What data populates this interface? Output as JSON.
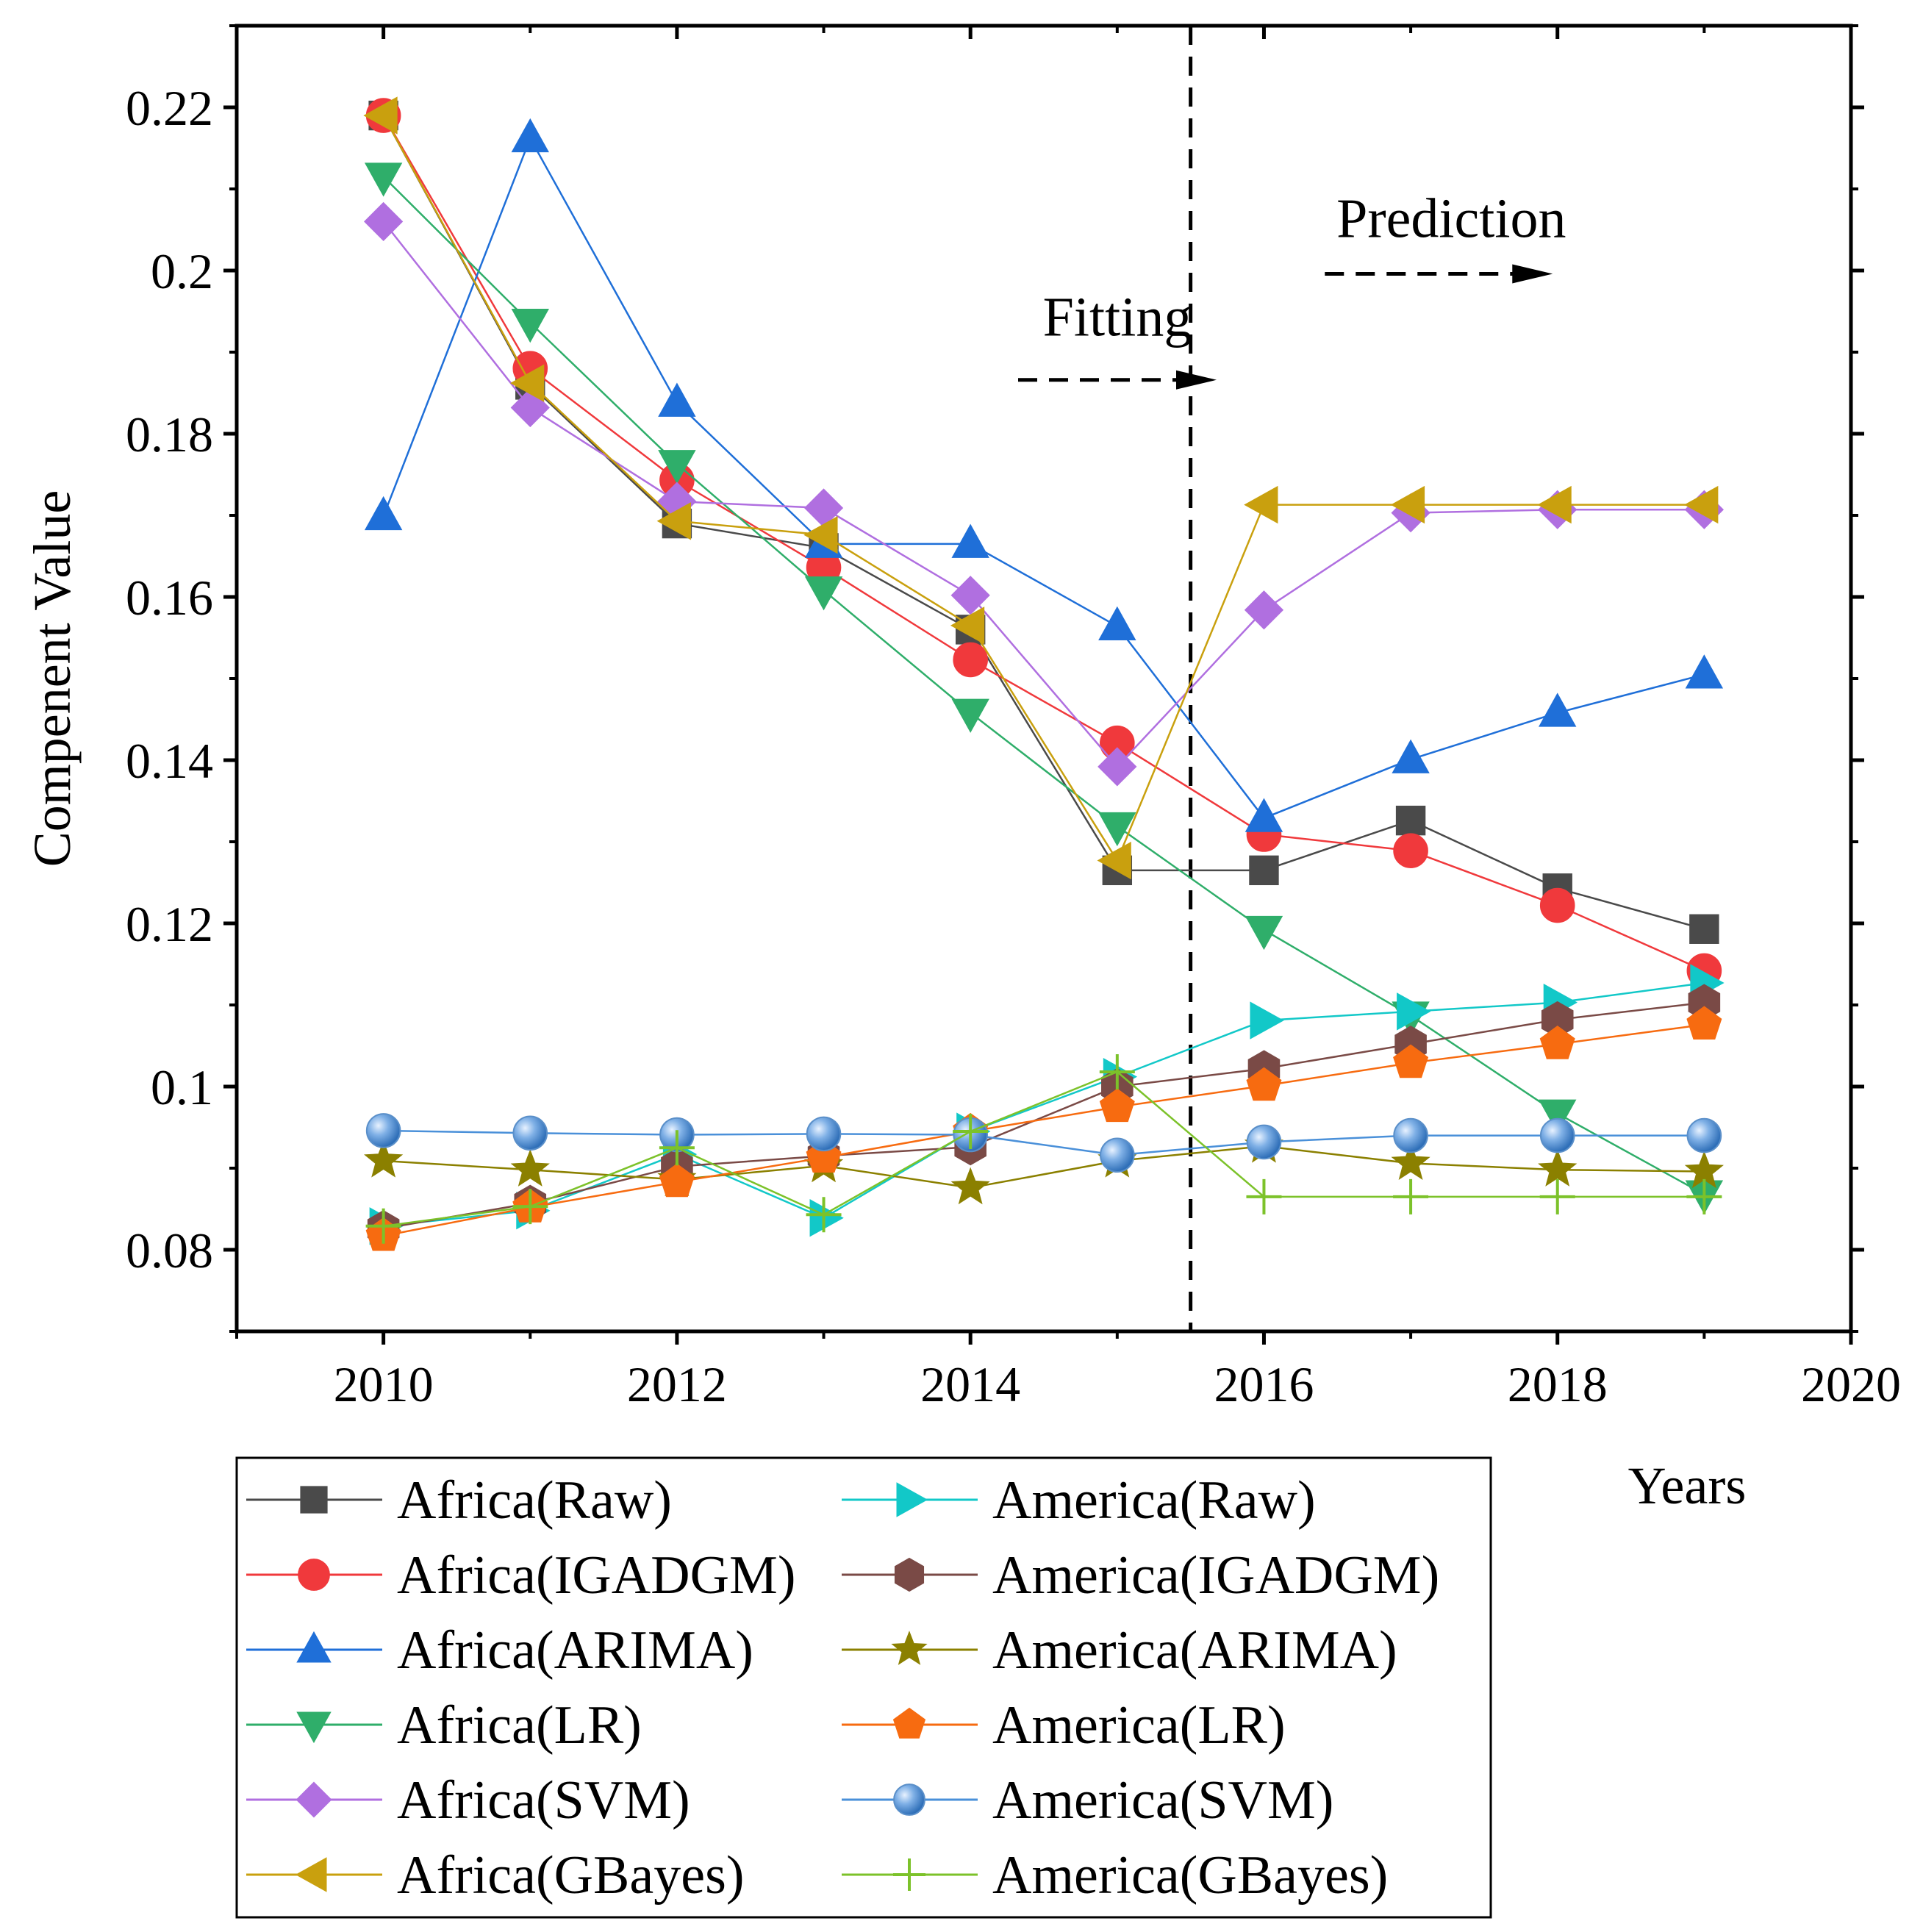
{
  "chart_data": {
    "type": "line",
    "title": "",
    "xlabel": "Years",
    "ylabel": "Compenent Value",
    "xlim": [
      2009,
      2020
    ],
    "ylim": [
      0.07,
      0.23
    ],
    "x_ticks": [
      2010,
      2012,
      2014,
      2016,
      2018,
      2020
    ],
    "x_tick_labels": [
      "2010",
      "2012",
      "2014",
      "2016",
      "2018",
      "2020"
    ],
    "y_ticks": [
      0.08,
      0.1,
      0.12,
      0.14,
      0.16,
      0.18,
      0.2,
      0.22
    ],
    "y_tick_labels": [
      "0.08",
      "0.1",
      "0.12",
      "0.14",
      "0.16",
      "0.18",
      "0.2",
      "0.22"
    ],
    "grid": false,
    "legend_position": "below-left",
    "divider_x": 2015.5,
    "annotations": [
      {
        "text": "Fitting",
        "arrow": "right",
        "x": 2014.5,
        "y": 0.1866
      },
      {
        "text": "Prediction",
        "arrow": "right",
        "x": 2016.5,
        "y": 0.1996
      }
    ],
    "x": [
      2010,
      2011,
      2012,
      2013,
      2014,
      2015,
      2016,
      2017,
      2018,
      2019
    ],
    "series": [
      {
        "name": "Africa(Raw)",
        "color": "#4a4a4a",
        "marker": "square",
        "values": [
          0.219,
          0.186,
          0.169,
          0.166,
          0.156,
          0.1265,
          0.1265,
          0.1326,
          0.1243,
          0.1193
        ]
      },
      {
        "name": "Africa(IGADGM)",
        "color": "#f0393c",
        "marker": "circle",
        "values": [
          0.219,
          0.188,
          0.1743,
          0.1636,
          0.1523,
          0.1421,
          0.1309,
          0.1289,
          0.1222,
          0.1142
        ]
      },
      {
        "name": "Africa(ARIMA)",
        "color": "#1f6fd8",
        "marker": "triangle-up",
        "values": [
          0.1699,
          0.2162,
          0.1838,
          0.1665,
          0.1665,
          0.1564,
          0.1329,
          0.1401,
          0.1458,
          0.1505
        ]
      },
      {
        "name": "Africa(LR)",
        "color": "#2fae6a",
        "marker": "triangle-down",
        "values": [
          0.2115,
          0.1936,
          0.1763,
          0.1608,
          0.1458,
          0.1319,
          0.1192,
          0.1087,
          0.0967,
          0.0868
        ]
      },
      {
        "name": "Africa(SVM)",
        "color": "#b06fe0",
        "marker": "diamond",
        "values": [
          0.206,
          0.1832,
          0.1717,
          0.1709,
          0.1602,
          0.1392,
          0.1584,
          0.1703,
          0.1707,
          0.1707
        ]
      },
      {
        "name": "Africa(GBayes)",
        "color": "#c9a00e",
        "marker": "triangle-left",
        "values": [
          0.219,
          0.1862,
          0.1693,
          0.1676,
          0.1565,
          0.1277,
          0.1713,
          0.1713,
          0.1713,
          0.1713
        ]
      },
      {
        "name": "America(Raw)",
        "color": "#12c8c8",
        "marker": "triangle-right",
        "values": [
          0.0829,
          0.0848,
          0.0917,
          0.0839,
          0.0945,
          0.1012,
          0.1081,
          0.1092,
          0.1103,
          0.1127
        ]
      },
      {
        "name": "America(IGADGM)",
        "color": "#7a4a46",
        "marker": "hexagon",
        "values": [
          0.0826,
          0.0857,
          0.0902,
          0.0915,
          0.0926,
          0.1,
          0.1022,
          0.1052,
          0.1082,
          0.1103
        ]
      },
      {
        "name": "America(ARIMA)",
        "color": "#8b8000",
        "marker": "star",
        "values": [
          0.0909,
          0.0898,
          0.0886,
          0.0903,
          0.0876,
          0.0909,
          0.0927,
          0.0906,
          0.0898,
          0.0896
        ]
      },
      {
        "name": "America(LR)",
        "color": "#f76b10",
        "marker": "pentagon",
        "values": [
          0.0817,
          0.0852,
          0.0883,
          0.0913,
          0.0945,
          0.0975,
          0.1001,
          0.1029,
          0.1052,
          0.1076
        ]
      },
      {
        "name": "America(SVM)",
        "color": "#4a90d9",
        "marker": "sphere",
        "values": [
          0.0946,
          0.0943,
          0.0941,
          0.0942,
          0.0941,
          0.0916,
          0.0932,
          0.094,
          0.094,
          0.094
        ]
      },
      {
        "name": "America(GBayes)",
        "color": "#7cc22a",
        "marker": "plus",
        "values": [
          0.0829,
          0.0853,
          0.0925,
          0.0843,
          0.0945,
          0.1018,
          0.0865,
          0.0865,
          0.0865,
          0.0865
        ]
      }
    ]
  }
}
